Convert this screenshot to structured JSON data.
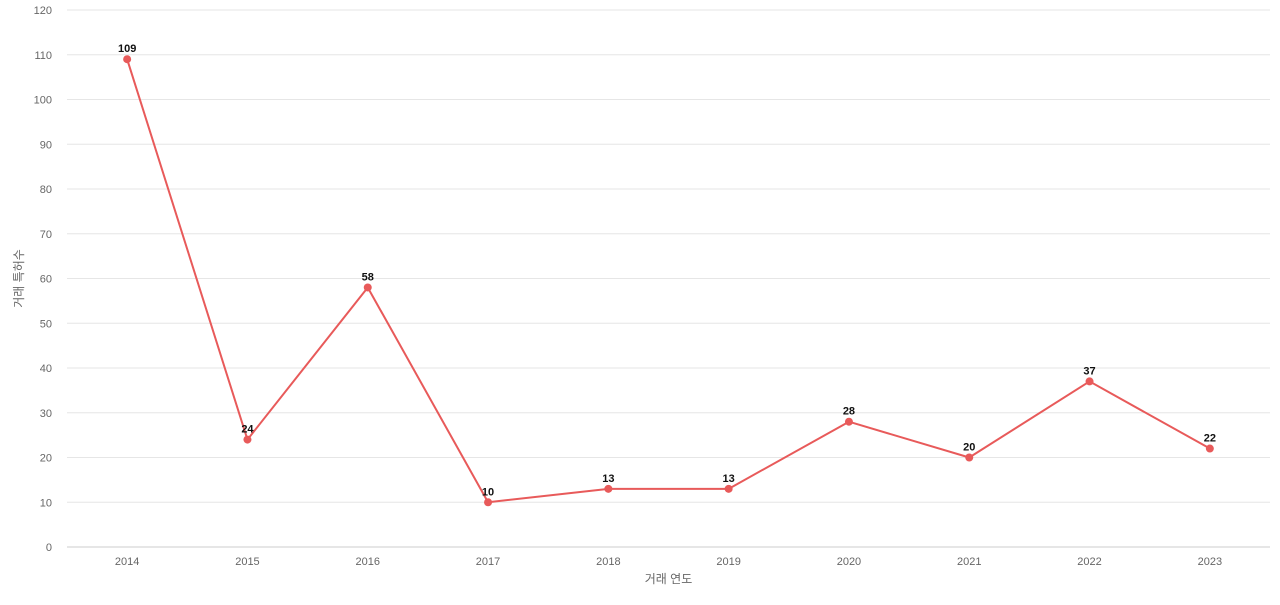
{
  "chart_data": {
    "type": "line",
    "title": "",
    "xlabel": "거래 연도",
    "ylabel": "거래 특허수",
    "categories": [
      "2014",
      "2015",
      "2016",
      "2017",
      "2018",
      "2019",
      "2020",
      "2021",
      "2022",
      "2023"
    ],
    "series": [
      {
        "values": [
          109,
          24,
          58,
          10,
          13,
          13,
          28,
          20,
          37,
          22
        ],
        "color": "#e85a5a"
      }
    ],
    "ylim": [
      0,
      120
    ],
    "yticks": [
      0,
      10,
      20,
      30,
      40,
      50,
      60,
      70,
      80,
      90,
      100,
      110,
      120
    ],
    "grid": true,
    "legend": "none",
    "data_labels": true
  }
}
